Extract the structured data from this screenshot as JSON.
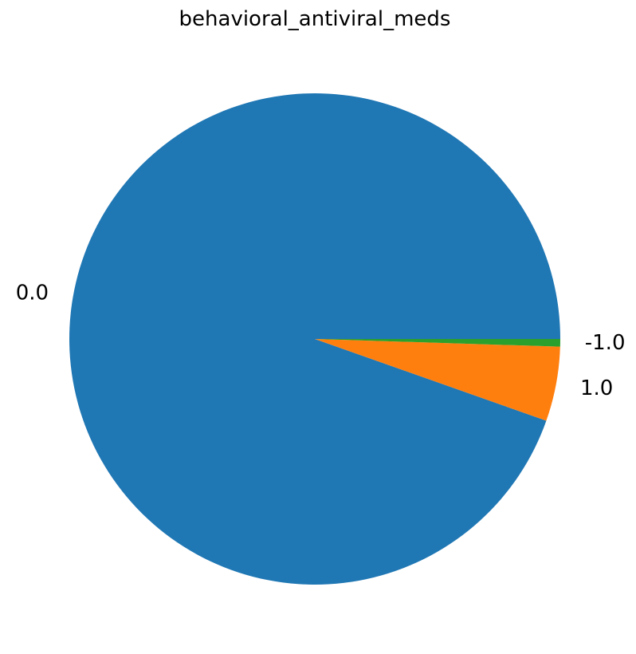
{
  "chart_data": {
    "type": "pie",
    "title": "behavioral_antiviral_meds",
    "categories": [
      "0.0",
      "1.0",
      "-1.0"
    ],
    "values": [
      94.6,
      4.9,
      0.5
    ],
    "colors": [
      "#1f77b4",
      "#ff7f0e",
      "#2ca02c"
    ],
    "start_angle_deg": 0,
    "direction": "counterclockwise",
    "legend": "none"
  }
}
